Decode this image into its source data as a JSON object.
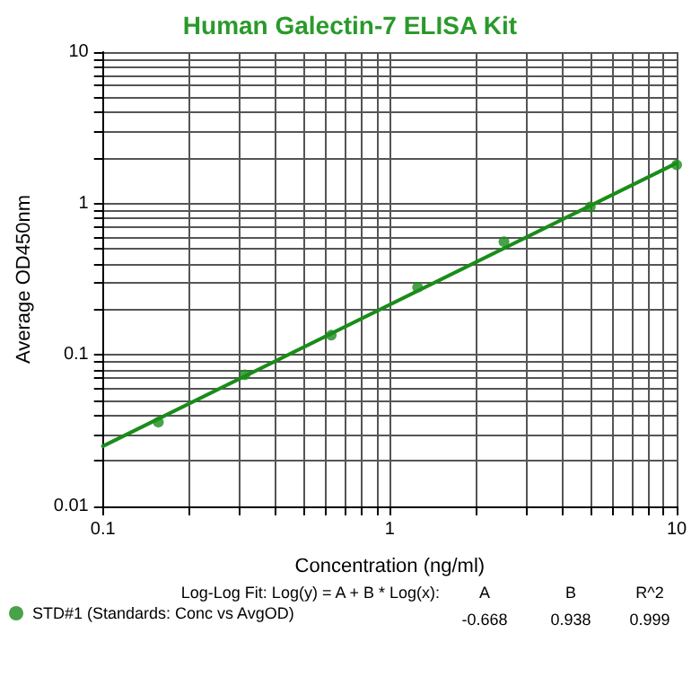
{
  "chart_data": {
    "type": "scatter",
    "title": "Human Galectin-7 ELISA Kit",
    "xlabel": "Concentration (ng/ml)",
    "ylabel": "Average OD450nm",
    "log": "xy",
    "grid": true,
    "legend": "bottom left",
    "marker": "circle",
    "xlim": [
      0.1,
      10
    ],
    "ylim": [
      0.01,
      10
    ],
    "xticks": [
      0.1,
      {
        "value": 0.2,
        "label": null
      },
      {
        "value": 0.3,
        "label": null
      },
      {
        "value": 0.4,
        "label": null
      },
      {
        "value": 0.5,
        "label": null
      },
      {
        "value": 0.6,
        "label": null
      },
      {
        "value": 0.7,
        "label": null
      },
      {
        "value": 0.8,
        "label": null
      },
      {
        "value": 0.9,
        "label": null
      },
      1,
      {
        "value": 2,
        "label": null
      },
      {
        "value": 3,
        "label": null
      },
      {
        "value": 4,
        "label": null
      },
      {
        "value": 5,
        "label": null
      },
      {
        "value": 6,
        "label": null
      },
      {
        "value": 7,
        "label": null
      },
      {
        "value": 8,
        "label": null
      },
      {
        "value": 9,
        "label": null
      },
      10
    ],
    "yticks": [
      0.01,
      {
        "value": 0.02,
        "label": null
      },
      {
        "value": 0.03,
        "label": null
      },
      {
        "value": 0.04,
        "label": null
      },
      {
        "value": 0.05,
        "label": null
      },
      {
        "value": 0.06,
        "label": null
      },
      {
        "value": 0.07,
        "label": null
      },
      {
        "value": 0.08,
        "label": null
      },
      {
        "value": 0.09,
        "label": null
      },
      0.1,
      {
        "value": 0.2,
        "label": null
      },
      {
        "value": 0.3,
        "label": null
      },
      {
        "value": 0.4,
        "label": null
      },
      {
        "value": 0.5,
        "label": null
      },
      {
        "value": 0.6,
        "label": null
      },
      {
        "value": 0.7,
        "label": null
      },
      {
        "value": 0.8,
        "label": null
      },
      {
        "value": 0.9,
        "label": null
      },
      1,
      {
        "value": 2,
        "label": null
      },
      {
        "value": 3,
        "label": null
      },
      {
        "value": 4,
        "label": null
      },
      {
        "value": 5,
        "label": null
      },
      {
        "value": 6,
        "label": null
      },
      {
        "value": 7,
        "label": null
      },
      {
        "value": 8,
        "label": null
      },
      {
        "value": 9,
        "label": null
      },
      10
    ],
    "series": [
      {
        "name": "STD#1 (Standards: Conc vs AvgOD)",
        "color": "#1a8c1a",
        "x": [
          0.156,
          0.3125,
          0.625,
          1.25,
          2.5,
          5,
          10
        ],
        "values": [
          0.036,
          0.074,
          0.135,
          0.28,
          0.56,
          0.95,
          1.8
        ]
      },
      {
        "type": "line",
        "color": "#1a8c1a",
        "line_style": "solid",
        "marker": "none",
        "x": [
          0.1,
          10
        ],
        "values": [
          0.025,
          1.85
        ]
      }
    ],
    "annotations": [
      "Log-Log Fit: Log(y) = A + B * Log(x):",
      "A",
      "B",
      "R^2",
      "-0.668",
      "0.938",
      "0.999"
    ]
  }
}
